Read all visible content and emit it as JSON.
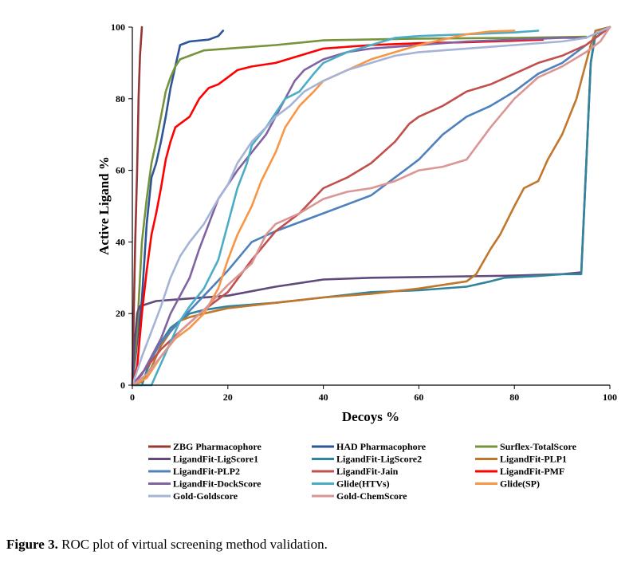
{
  "chart_data": {
    "type": "line",
    "title": "",
    "xlabel": "Decoys %",
    "ylabel": "Active  Ligand %",
    "xlim": [
      0,
      100
    ],
    "ylim": [
      0,
      100
    ],
    "xticks": [
      "0",
      "20",
      "40",
      "60",
      "80",
      "100"
    ],
    "yticks": [
      "0",
      "20",
      "40",
      "60",
      "80",
      "100"
    ],
    "grid": false,
    "legend_position": "bottom",
    "series": [
      {
        "name": "ZBG Pharmacophore",
        "color": "#953735",
        "points": [
          [
            0,
            0
          ],
          [
            0.3,
            20
          ],
          [
            0.6,
            40
          ],
          [
            1,
            60
          ],
          [
            1.3,
            80
          ],
          [
            1.6,
            92
          ],
          [
            2,
            100
          ]
        ]
      },
      {
        "name": "HAD Pharmacophore",
        "color": "#2E5597",
        "points": [
          [
            0,
            0
          ],
          [
            2,
            24
          ],
          [
            3,
            45
          ],
          [
            4,
            58
          ],
          [
            5,
            62
          ],
          [
            6,
            68
          ],
          [
            7,
            75
          ],
          [
            8,
            83
          ],
          [
            9,
            89
          ],
          [
            10,
            95
          ],
          [
            12,
            96
          ],
          [
            16,
            96.5
          ],
          [
            18,
            97.5
          ],
          [
            19,
            99
          ]
        ]
      },
      {
        "name": "Surflex-TotalScore",
        "color": "#77933C",
        "points": [
          [
            0,
            0
          ],
          [
            1,
            15
          ],
          [
            2,
            40
          ],
          [
            3,
            52
          ],
          [
            4,
            62
          ],
          [
            5,
            68
          ],
          [
            6,
            75
          ],
          [
            7,
            82
          ],
          [
            8,
            86
          ],
          [
            9,
            89
          ],
          [
            10,
            91
          ],
          [
            12,
            92
          ],
          [
            15,
            93.5
          ],
          [
            20,
            94
          ],
          [
            30,
            95
          ],
          [
            40,
            96.3
          ],
          [
            60,
            96.8
          ],
          [
            80,
            97
          ],
          [
            95,
            97.3
          ]
        ]
      },
      {
        "name": "LigandFit-LigScore1",
        "color": "#604A7B",
        "points": [
          [
            0,
            0
          ],
          [
            0.5,
            12
          ],
          [
            1,
            20
          ],
          [
            1.5,
            22
          ],
          [
            5,
            23.5
          ],
          [
            10,
            24
          ],
          [
            20,
            25
          ],
          [
            30,
            27.5
          ],
          [
            40,
            29.5
          ],
          [
            50,
            30
          ],
          [
            60,
            30.2
          ],
          [
            70,
            30.4
          ],
          [
            80,
            30.6
          ],
          [
            90,
            31
          ],
          [
            94,
            31.5
          ],
          [
            95,
            60
          ],
          [
            96,
            90
          ],
          [
            97,
            98
          ],
          [
            100,
            100
          ]
        ]
      },
      {
        "name": "LigandFit-LigScore2",
        "color": "#31849B",
        "points": [
          [
            0,
            0
          ],
          [
            2,
            0
          ],
          [
            3,
            4
          ],
          [
            5,
            10
          ],
          [
            8,
            16
          ],
          [
            10,
            18
          ],
          [
            12,
            20
          ],
          [
            15,
            21
          ],
          [
            20,
            22
          ],
          [
            30,
            23
          ],
          [
            40,
            24.5
          ],
          [
            50,
            26
          ],
          [
            60,
            26.5
          ],
          [
            70,
            27.5
          ],
          [
            75,
            29
          ],
          [
            78,
            30
          ],
          [
            85,
            30.5
          ],
          [
            90,
            31
          ],
          [
            94,
            31
          ],
          [
            95,
            60
          ],
          [
            96,
            90
          ],
          [
            97,
            99
          ],
          [
            100,
            100
          ]
        ]
      },
      {
        "name": "LigandFit-PLP1",
        "color": "#C0772C",
        "points": [
          [
            0,
            0
          ],
          [
            2,
            1
          ],
          [
            4,
            5
          ],
          [
            6,
            11
          ],
          [
            8,
            15
          ],
          [
            10,
            18
          ],
          [
            12,
            19
          ],
          [
            15,
            20
          ],
          [
            20,
            21.5
          ],
          [
            30,
            23
          ],
          [
            40,
            24.5
          ],
          [
            50,
            25.5
          ],
          [
            60,
            27
          ],
          [
            70,
            29
          ],
          [
            72,
            31
          ],
          [
            75,
            38
          ],
          [
            77,
            42
          ],
          [
            80,
            50
          ],
          [
            82,
            55
          ],
          [
            85,
            57
          ],
          [
            87,
            63
          ],
          [
            90,
            70
          ],
          [
            93,
            80
          ],
          [
            95,
            90
          ],
          [
            96,
            95
          ],
          [
            97,
            99
          ],
          [
            100,
            100
          ]
        ]
      },
      {
        "name": "LigandFit-PLP2",
        "color": "#4F81BD",
        "points": [
          [
            0,
            0
          ],
          [
            3,
            5
          ],
          [
            6,
            12
          ],
          [
            10,
            18
          ],
          [
            15,
            25
          ],
          [
            20,
            32
          ],
          [
            25,
            40
          ],
          [
            30,
            43
          ],
          [
            40,
            48
          ],
          [
            50,
            53
          ],
          [
            55,
            58
          ],
          [
            60,
            63
          ],
          [
            65,
            70
          ],
          [
            70,
            75
          ],
          [
            75,
            78
          ],
          [
            80,
            82
          ],
          [
            85,
            87
          ],
          [
            90,
            90
          ],
          [
            95,
            95
          ],
          [
            97,
            97
          ],
          [
            100,
            100
          ]
        ]
      },
      {
        "name": "LigandFit-Jain",
        "color": "#C0504D",
        "points": [
          [
            0,
            0
          ],
          [
            3,
            5
          ],
          [
            6,
            10
          ],
          [
            10,
            15
          ],
          [
            15,
            21
          ],
          [
            20,
            26
          ],
          [
            25,
            35
          ],
          [
            30,
            43
          ],
          [
            35,
            48
          ],
          [
            40,
            55
          ],
          [
            45,
            58
          ],
          [
            50,
            62
          ],
          [
            55,
            68
          ],
          [
            58,
            73
          ],
          [
            60,
            75
          ],
          [
            65,
            78
          ],
          [
            70,
            82
          ],
          [
            75,
            84
          ],
          [
            80,
            87
          ],
          [
            85,
            90
          ],
          [
            90,
            92
          ],
          [
            95,
            95
          ],
          [
            98,
            98
          ],
          [
            100,
            100
          ]
        ]
      },
      {
        "name": "LigandFit-PMF",
        "color": "#FF0000",
        "points": [
          [
            0,
            0
          ],
          [
            1,
            5
          ],
          [
            2,
            20
          ],
          [
            3,
            32
          ],
          [
            4,
            42
          ],
          [
            5,
            48
          ],
          [
            6,
            55
          ],
          [
            7,
            63
          ],
          [
            8,
            68
          ],
          [
            9,
            72
          ],
          [
            10,
            73
          ],
          [
            12,
            75
          ],
          [
            14,
            80
          ],
          [
            16,
            83
          ],
          [
            18,
            84
          ],
          [
            20,
            86
          ],
          [
            22,
            88
          ],
          [
            25,
            89
          ],
          [
            30,
            90
          ],
          [
            35,
            92
          ],
          [
            40,
            94
          ],
          [
            50,
            95
          ],
          [
            60,
            95.5
          ],
          [
            70,
            95.8
          ],
          [
            80,
            96.2
          ],
          [
            86,
            96.5
          ]
        ]
      },
      {
        "name": "LigandFit-DockScore",
        "color": "#8064A2",
        "points": [
          [
            0,
            0
          ],
          [
            2,
            3
          ],
          [
            4,
            8
          ],
          [
            6,
            13
          ],
          [
            8,
            20
          ],
          [
            10,
            25
          ],
          [
            12,
            30
          ],
          [
            14,
            38
          ],
          [
            16,
            45
          ],
          [
            18,
            52
          ],
          [
            20,
            56
          ],
          [
            22,
            60
          ],
          [
            25,
            65
          ],
          [
            28,
            70
          ],
          [
            30,
            75
          ],
          [
            32,
            80
          ],
          [
            34,
            85
          ],
          [
            36,
            88
          ],
          [
            40,
            91
          ],
          [
            45,
            93
          ],
          [
            50,
            94
          ],
          [
            60,
            95
          ],
          [
            70,
            96
          ],
          [
            80,
            96.5
          ],
          [
            90,
            97
          ],
          [
            95,
            97
          ]
        ]
      },
      {
        "name": "Glide(HTVs)",
        "color": "#4BACC6",
        "points": [
          [
            0,
            0
          ],
          [
            4,
            0
          ],
          [
            5,
            3
          ],
          [
            8,
            12
          ],
          [
            10,
            18
          ],
          [
            12,
            22
          ],
          [
            15,
            27
          ],
          [
            18,
            35
          ],
          [
            20,
            45
          ],
          [
            22,
            55
          ],
          [
            24,
            62
          ],
          [
            25,
            67
          ],
          [
            28,
            72
          ],
          [
            30,
            76
          ],
          [
            32,
            80
          ],
          [
            35,
            82
          ],
          [
            38,
            87
          ],
          [
            40,
            90
          ],
          [
            45,
            93
          ],
          [
            50,
            95
          ],
          [
            55,
            97
          ],
          [
            60,
            97.5
          ],
          [
            70,
            98
          ],
          [
            80,
            98.5
          ],
          [
            85,
            99
          ]
        ]
      },
      {
        "name": "Glide(SP)",
        "color": "#F79646",
        "points": [
          [
            0,
            0
          ],
          [
            3,
            2
          ],
          [
            6,
            8
          ],
          [
            9,
            13
          ],
          [
            12,
            16
          ],
          [
            15,
            20
          ],
          [
            18,
            27
          ],
          [
            20,
            35
          ],
          [
            22,
            42
          ],
          [
            25,
            50
          ],
          [
            27,
            57
          ],
          [
            30,
            65
          ],
          [
            32,
            72
          ],
          [
            35,
            78
          ],
          [
            38,
            82
          ],
          [
            40,
            85
          ],
          [
            45,
            88
          ],
          [
            50,
            91
          ],
          [
            55,
            93
          ],
          [
            60,
            95
          ],
          [
            65,
            96.5
          ],
          [
            70,
            98
          ],
          [
            75,
            98.8
          ],
          [
            80,
            99
          ]
        ]
      },
      {
        "name": "Gold-Goldscore",
        "color": "#A5B4D6",
        "points": [
          [
            0,
            0
          ],
          [
            2,
            8
          ],
          [
            4,
            15
          ],
          [
            6,
            22
          ],
          [
            8,
            30
          ],
          [
            10,
            36
          ],
          [
            12,
            40
          ],
          [
            15,
            45
          ],
          [
            18,
            52
          ],
          [
            20,
            56
          ],
          [
            22,
            62
          ],
          [
            25,
            68
          ],
          [
            28,
            72
          ],
          [
            30,
            75
          ],
          [
            33,
            78
          ],
          [
            36,
            82
          ],
          [
            40,
            85
          ],
          [
            45,
            88
          ],
          [
            50,
            90
          ],
          [
            55,
            92
          ],
          [
            60,
            93
          ],
          [
            70,
            94
          ],
          [
            80,
            95
          ],
          [
            90,
            96
          ],
          [
            95,
            97
          ],
          [
            100,
            100
          ]
        ]
      },
      {
        "name": "Gold-ChemScore",
        "color": "#D99694",
        "points": [
          [
            0,
            0
          ],
          [
            3,
            3
          ],
          [
            6,
            8
          ],
          [
            10,
            15
          ],
          [
            15,
            21
          ],
          [
            20,
            28
          ],
          [
            25,
            34
          ],
          [
            28,
            42
          ],
          [
            30,
            45
          ],
          [
            35,
            48
          ],
          [
            40,
            52
          ],
          [
            45,
            54
          ],
          [
            50,
            55
          ],
          [
            55,
            57
          ],
          [
            60,
            60
          ],
          [
            65,
            61
          ],
          [
            70,
            63
          ],
          [
            75,
            72
          ],
          [
            80,
            80
          ],
          [
            85,
            86
          ],
          [
            90,
            89
          ],
          [
            95,
            93
          ],
          [
            98,
            96
          ],
          [
            100,
            100
          ]
        ]
      }
    ]
  },
  "caption": {
    "label": "Figure 3.",
    "text": " ROC plot of virtual screening method validation."
  }
}
